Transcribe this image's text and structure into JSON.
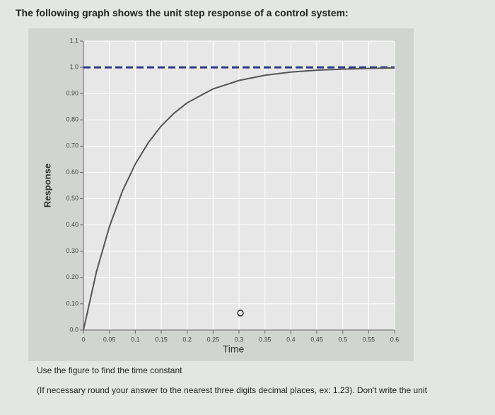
{
  "header": {
    "title": "The following graph shows the unit step response of a control system:"
  },
  "chart_data": {
    "type": "line",
    "x": [
      0,
      0.025,
      0.05,
      0.075,
      0.1,
      0.125,
      0.15,
      0.175,
      0.2,
      0.25,
      0.3,
      0.35,
      0.4,
      0.45,
      0.5,
      0.55,
      0.6
    ],
    "values": [
      0,
      0.221,
      0.393,
      0.528,
      0.632,
      0.713,
      0.777,
      0.826,
      0.865,
      0.918,
      0.95,
      0.97,
      0.982,
      0.989,
      0.993,
      0.996,
      0.998
    ],
    "color": "#555555",
    "reference_line": 1,
    "reference_color": "#2a3a8c",
    "xlabel": "Time",
    "ylabel": "Response",
    "xlim": [
      0,
      0.6
    ],
    "ylim": [
      0,
      1.1
    ],
    "xticks": [
      0,
      0.05,
      0.1,
      0.15,
      0.2,
      0.25,
      0.3,
      0.35,
      0.4,
      0.45,
      0.5,
      0.55,
      0.6
    ],
    "yticks": [
      {
        "value": 0,
        "label": "0.0"
      },
      {
        "value": 0.1,
        "label": "0.10"
      },
      {
        "value": 0.2,
        "label": "0.20"
      },
      {
        "value": 0.3,
        "label": "0.30"
      },
      {
        "value": 0.4,
        "label": "0.40"
      },
      {
        "value": 0.5,
        "label": "0.50"
      },
      {
        "value": 0.6,
        "label": "0.60"
      },
      {
        "value": 0.7,
        "label": "0.70"
      },
      {
        "value": 0.8,
        "label": "0.80"
      },
      {
        "value": 0.9,
        "label": "0.90"
      },
      {
        "value": 1,
        "label": "1.0"
      },
      {
        "value": 1.1,
        "label": "1.1"
      }
    ],
    "grid": true
  },
  "question": {
    "instruction": "Use the figure to find the time constant",
    "note": "(If necessary round your answer to the nearest three digits decimal places, ex: 1.23). Don't write the unit"
  }
}
